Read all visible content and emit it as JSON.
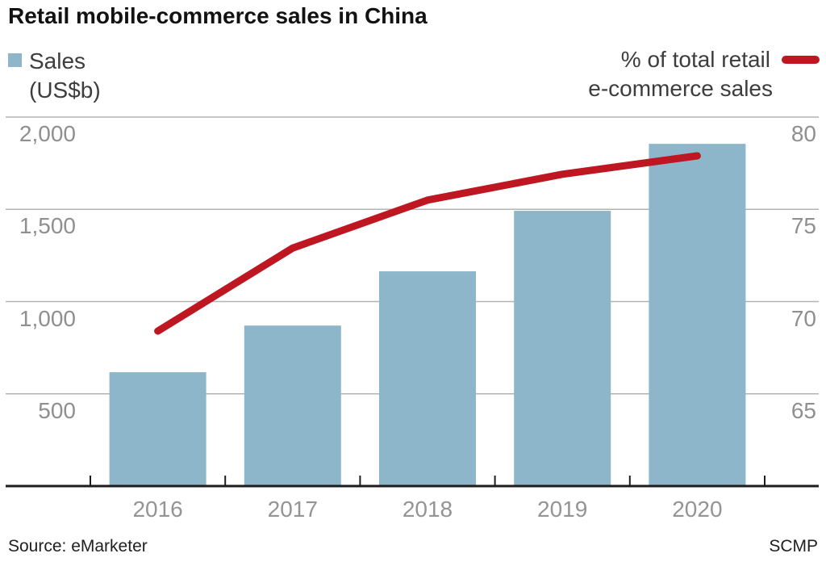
{
  "header": {
    "title": "Retail mobile-commerce sales in China"
  },
  "legend": {
    "sales_line1": "Sales",
    "sales_line2": "(US$b)",
    "pct_line1": "% of total retail",
    "pct_line2": "e-commerce sales"
  },
  "footer": {
    "source": "Source: eMarketer",
    "credit": "SCMP"
  },
  "colors": {
    "bar": "#8db6cb",
    "line": "#bf1722",
    "grid": "#b3b3b3",
    "axis": "#1d1d1d",
    "tick_text": "#8f8f8f"
  },
  "chart_data": {
    "type": "bar",
    "subtype": "bar-and-line-dual-axis",
    "title": "Retail mobile-commerce sales in China",
    "categories": [
      "2016",
      "2017",
      "2018",
      "2019",
      "2020"
    ],
    "series": [
      {
        "name": "Sales (US$b)",
        "kind": "bar",
        "axis": "left",
        "color": "#8db6cb",
        "values": [
          617,
          870,
          1164,
          1492,
          1855
        ]
      },
      {
        "name": "% of total retail e-commerce sales",
        "kind": "line",
        "axis": "right",
        "color": "#bf1722",
        "values": [
          68.4,
          72.9,
          75.5,
          76.9,
          77.9
        ]
      }
    ],
    "left_axis": {
      "title": "Sales (US$b)",
      "range": [
        0,
        2000
      ],
      "ticks": [
        {
          "value": 2000,
          "label": "2,000"
        },
        {
          "value": 1500,
          "label": "1,500"
        },
        {
          "value": 1000,
          "label": "1,000"
        },
        {
          "value": 500,
          "label": "500"
        }
      ]
    },
    "right_axis": {
      "title": "% of total retail e-commerce sales",
      "range": [
        60,
        80
      ],
      "ticks": [
        {
          "value": 80,
          "label": "80"
        },
        {
          "value": 75,
          "label": "75"
        },
        {
          "value": 70,
          "label": "70"
        },
        {
          "value": 65,
          "label": "65"
        }
      ]
    },
    "grid": true,
    "legend_position": "top"
  }
}
